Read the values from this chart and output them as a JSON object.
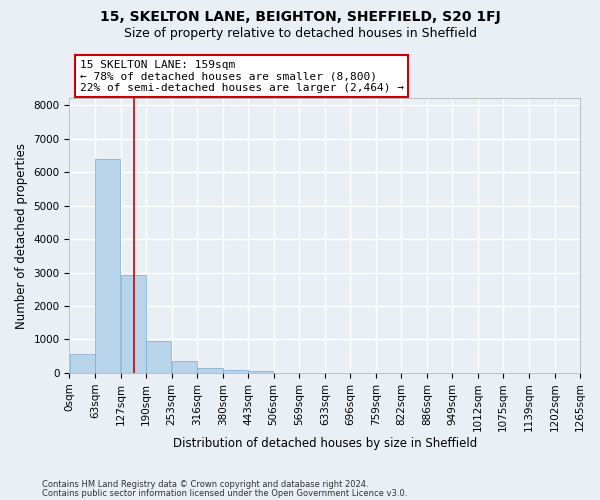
{
  "title1": "15, SKELTON LANE, BEIGHTON, SHEFFIELD, S20 1FJ",
  "title2": "Size of property relative to detached houses in Sheffield",
  "xlabel": "Distribution of detached houses by size in Sheffield",
  "ylabel": "Number of detached properties",
  "footer1": "Contains HM Land Registry data © Crown copyright and database right 2024.",
  "footer2": "Contains public sector information licensed under the Open Government Licence v3.0.",
  "bar_edges": [
    0,
    63,
    127,
    190,
    253,
    316,
    380,
    443,
    506,
    569,
    633,
    696,
    759,
    822,
    886,
    949,
    1012,
    1075,
    1139,
    1202,
    1265
  ],
  "bar_values": [
    570,
    6380,
    2940,
    960,
    360,
    160,
    95,
    65,
    0,
    0,
    0,
    0,
    0,
    0,
    0,
    0,
    0,
    0,
    0,
    0
  ],
  "bar_color": "#b8d4ea",
  "bar_edge_color": "#7aaacf",
  "property_size": 159,
  "vline_color": "#cc0000",
  "annotation_line1": "15 SKELTON LANE: 159sqm",
  "annotation_line2": "← 78% of detached houses are smaller (8,800)",
  "annotation_line3": "22% of semi-detached houses are larger (2,464) →",
  "annotation_box_color": "#ffffff",
  "annotation_border_color": "#cc0000",
  "ylim": [
    0,
    8200
  ],
  "yticks": [
    0,
    1000,
    2000,
    3000,
    4000,
    5000,
    6000,
    7000,
    8000
  ],
  "bg_color": "#eaeef5",
  "plot_bg_color": "#eaeef5",
  "grid_color": "#ffffff",
  "title1_fontsize": 10,
  "title2_fontsize": 9,
  "xlabel_fontsize": 8.5,
  "ylabel_fontsize": 8.5,
  "tick_fontsize": 7.5,
  "annot_fontsize": 8.0
}
